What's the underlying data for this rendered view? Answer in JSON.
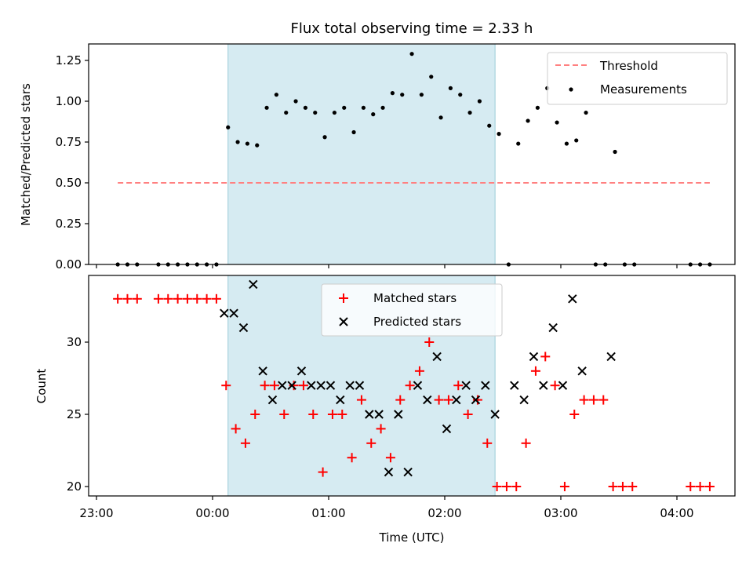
{
  "chart_data": [
    {
      "type": "scatter",
      "title": "Flux total observing time = 2.33 h",
      "ylabel": "Matched/Predicted stars",
      "xlabel": "",
      "ylim": [
        0,
        1.35
      ],
      "yticks": [
        "0.00",
        "0.25",
        "0.50",
        "0.75",
        "1.00",
        "1.25"
      ],
      "highlight_span": {
        "start": "00:08",
        "end": "02:26"
      },
      "threshold": {
        "name": "Threshold",
        "value": 0.5,
        "x_start": "23:11",
        "x_end": "04:17",
        "color": "#ff8080"
      },
      "series": [
        {
          "name": "Measurements",
          "color": "#000000",
          "points": [
            [
              "23:11",
              0
            ],
            [
              "23:16",
              0
            ],
            [
              "23:21",
              0
            ],
            [
              "23:32",
              0
            ],
            [
              "23:37",
              0
            ],
            [
              "23:42",
              0
            ],
            [
              "23:47",
              0
            ],
            [
              "23:52",
              0
            ],
            [
              "23:57",
              0
            ],
            [
              "00:02",
              0
            ],
            [
              "00:08",
              0.84
            ],
            [
              "00:13",
              0.75
            ],
            [
              "00:18",
              0.74
            ],
            [
              "00:23",
              0.73
            ],
            [
              "00:28",
              0.96
            ],
            [
              "00:33",
              1.04
            ],
            [
              "00:38",
              0.93
            ],
            [
              "00:43",
              1.0
            ],
            [
              "00:48",
              0.96
            ],
            [
              "00:53",
              0.93
            ],
            [
              "00:58",
              0.78
            ],
            [
              "01:03",
              0.93
            ],
            [
              "01:08",
              0.96
            ],
            [
              "01:13",
              0.81
            ],
            [
              "01:18",
              0.96
            ],
            [
              "01:23",
              0.92
            ],
            [
              "01:28",
              0.96
            ],
            [
              "01:33",
              1.05
            ],
            [
              "01:38",
              1.04
            ],
            [
              "01:43",
              1.29
            ],
            [
              "01:48",
              1.04
            ],
            [
              "01:53",
              1.15
            ],
            [
              "01:58",
              0.9
            ],
            [
              "02:03",
              1.08
            ],
            [
              "02:08",
              1.04
            ],
            [
              "02:13",
              0.93
            ],
            [
              "02:18",
              1.0
            ],
            [
              "02:23",
              0.85
            ],
            [
              "02:28",
              0.8
            ],
            [
              "02:33",
              0
            ],
            [
              "02:38",
              0.74
            ],
            [
              "02:43",
              0.88
            ],
            [
              "02:48",
              0.96
            ],
            [
              "02:53",
              1.08
            ],
            [
              "02:58",
              0.87
            ],
            [
              "03:03",
              0.74
            ],
            [
              "03:08",
              0.76
            ],
            [
              "03:13",
              0.93
            ],
            [
              "03:18",
              0
            ],
            [
              "03:23",
              0
            ],
            [
              "03:28",
              0.69
            ],
            [
              "03:33",
              0
            ],
            [
              "03:38",
              0
            ],
            [
              "04:07",
              0
            ],
            [
              "04:12",
              0
            ],
            [
              "04:17",
              0
            ]
          ]
        }
      ],
      "legend": [
        "Threshold",
        "Measurements"
      ],
      "legend_position": "top-right"
    },
    {
      "type": "scatter",
      "title": "",
      "xlabel": "Time (UTC)",
      "ylabel": "Count",
      "ylim": [
        19.3,
        34.7
      ],
      "yticks": [
        "20",
        "25",
        "30"
      ],
      "xticks": [
        "23:00",
        "00:00",
        "01:00",
        "02:00",
        "03:00",
        "04:00"
      ],
      "highlight_span": {
        "start": "00:08",
        "end": "02:26"
      },
      "series": [
        {
          "name": "Matched stars",
          "color": "#ff0000",
          "marker": "plus",
          "points": [
            [
              "23:11",
              33
            ],
            [
              "23:16",
              33
            ],
            [
              "23:21",
              33
            ],
            [
              "23:32",
              33
            ],
            [
              "23:37",
              33
            ],
            [
              "23:42",
              33
            ],
            [
              "23:47",
              33
            ],
            [
              "23:52",
              33
            ],
            [
              "23:57",
              33
            ],
            [
              "00:02",
              33
            ],
            [
              "00:07",
              27
            ],
            [
              "00:12",
              24
            ],
            [
              "00:17",
              23
            ],
            [
              "00:22",
              25
            ],
            [
              "00:27",
              27
            ],
            [
              "00:32",
              27
            ],
            [
              "00:37",
              25
            ],
            [
              "00:42",
              27
            ],
            [
              "00:47",
              27
            ],
            [
              "00:52",
              25
            ],
            [
              "00:57",
              21
            ],
            [
              "01:02",
              25
            ],
            [
              "01:07",
              25
            ],
            [
              "01:12",
              22
            ],
            [
              "01:17",
              26
            ],
            [
              "01:22",
              23
            ],
            [
              "01:27",
              24
            ],
            [
              "01:32",
              22
            ],
            [
              "01:37",
              26
            ],
            [
              "01:42",
              27
            ],
            [
              "01:47",
              28
            ],
            [
              "01:52",
              30
            ],
            [
              "01:57",
              26
            ],
            [
              "02:02",
              26
            ],
            [
              "02:07",
              27
            ],
            [
              "02:12",
              25
            ],
            [
              "02:17",
              26
            ],
            [
              "02:22",
              23
            ],
            [
              "02:27",
              20
            ],
            [
              "02:32",
              20
            ],
            [
              "02:37",
              20
            ],
            [
              "02:42",
              23
            ],
            [
              "02:47",
              28
            ],
            [
              "02:52",
              29
            ],
            [
              "02:57",
              27
            ],
            [
              "03:02",
              20
            ],
            [
              "03:07",
              25
            ],
            [
              "03:12",
              26
            ],
            [
              "03:17",
              26
            ],
            [
              "03:22",
              26
            ],
            [
              "03:27",
              20
            ],
            [
              "03:32",
              20
            ],
            [
              "03:37",
              20
            ],
            [
              "04:07",
              20
            ],
            [
              "04:12",
              20
            ],
            [
              "04:17",
              20
            ]
          ]
        },
        {
          "name": "Predicted stars",
          "color": "#000000",
          "marker": "x",
          "points": [
            [
              "00:06",
              32
            ],
            [
              "00:11",
              32
            ],
            [
              "00:16",
              31
            ],
            [
              "00:21",
              34
            ],
            [
              "00:26",
              28
            ],
            [
              "00:31",
              26
            ],
            [
              "00:36",
              27
            ],
            [
              "00:41",
              27
            ],
            [
              "00:46",
              28
            ],
            [
              "00:51",
              27
            ],
            [
              "00:56",
              27
            ],
            [
              "01:01",
              27
            ],
            [
              "01:06",
              26
            ],
            [
              "01:11",
              27
            ],
            [
              "01:16",
              27
            ],
            [
              "01:21",
              25
            ],
            [
              "01:26",
              25
            ],
            [
              "01:31",
              21
            ],
            [
              "01:36",
              25
            ],
            [
              "01:41",
              21
            ],
            [
              "01:46",
              27
            ],
            [
              "01:51",
              26
            ],
            [
              "01:56",
              29
            ],
            [
              "02:01",
              24
            ],
            [
              "02:06",
              26
            ],
            [
              "02:11",
              27
            ],
            [
              "02:16",
              26
            ],
            [
              "02:21",
              27
            ],
            [
              "02:26",
              25
            ],
            [
              "02:36",
              27
            ],
            [
              "02:41",
              26
            ],
            [
              "02:46",
              29
            ],
            [
              "02:51",
              27
            ],
            [
              "02:56",
              31
            ],
            [
              "03:01",
              27
            ],
            [
              "03:06",
              33
            ],
            [
              "03:11",
              28
            ],
            [
              "03:26",
              29
            ]
          ]
        }
      ],
      "legend": [
        "Matched stars",
        "Predicted stars"
      ],
      "legend_position": "upper-center"
    }
  ]
}
